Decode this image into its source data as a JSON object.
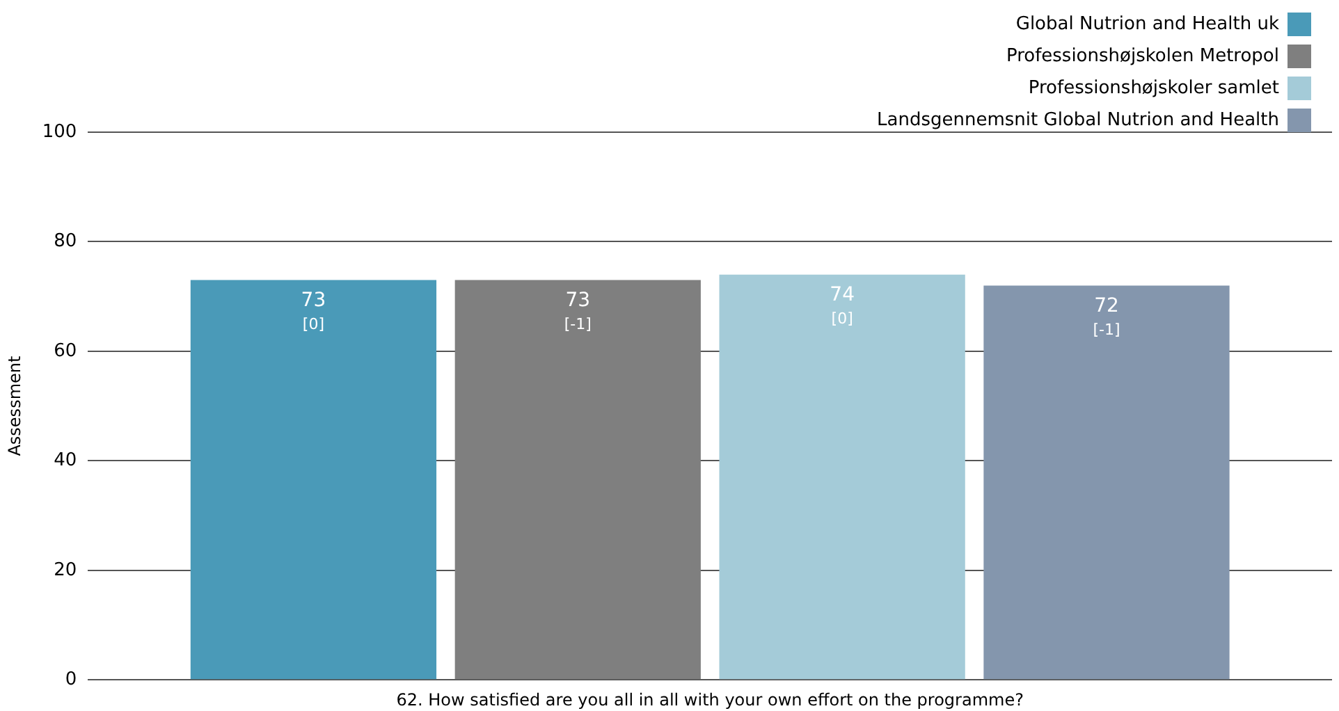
{
  "chart_data": {
    "type": "bar",
    "categories": [
      "62. How satisfied are you all in all with your own effort on the programme?"
    ],
    "ylabel": "Assessment",
    "ylim": [
      0,
      100
    ],
    "yticks": [
      0,
      20,
      40,
      60,
      80,
      100
    ],
    "grid": "y",
    "legend": "top right",
    "series": [
      {
        "name": "Global Nutrion and Health uk",
        "color": "#4a9ab8",
        "values": [
          73
        ],
        "value_labels": [
          "73 [0]"
        ]
      },
      {
        "name": "Professionshøjskolen Metropol",
        "color": "#7f7f7f",
        "values": [
          73
        ],
        "value_labels": [
          "73 [-1]"
        ]
      },
      {
        "name": "Professionshøjskoler samlet",
        "color": "#a4cbd8",
        "values": [
          74
        ],
        "value_labels": [
          "74 [0]"
        ]
      },
      {
        "name": "Landsgennemsnit Global Nutrion and Health",
        "color": "#8496ad",
        "values": [
          72
        ],
        "value_labels": [
          "72 [-1]"
        ]
      }
    ]
  }
}
